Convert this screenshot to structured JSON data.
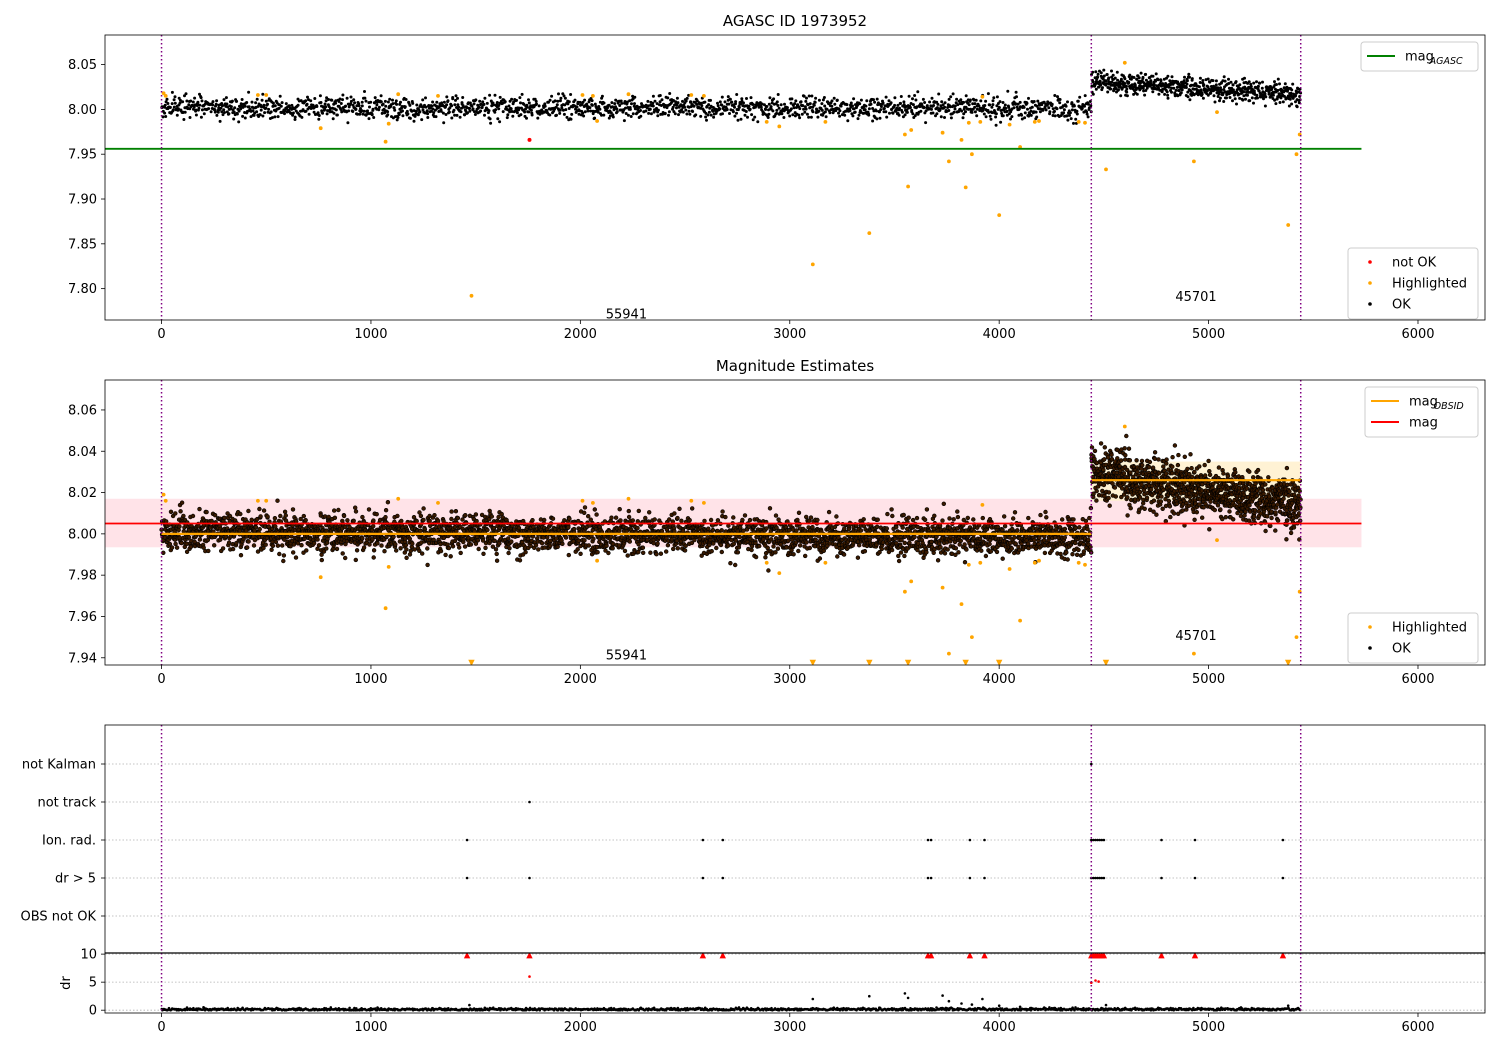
{
  "chart_data": [
    {
      "type": "scatter",
      "title": "AGASC ID 1973952",
      "xlim": [
        -270,
        6320
      ],
      "ylim": [
        7.765,
        8.083
      ],
      "xticks": [
        0,
        1000,
        2000,
        3000,
        4000,
        5000,
        6000
      ],
      "yticks": [
        7.8,
        7.85,
        7.9,
        7.95,
        8.0,
        8.05
      ],
      "ytick_labels": [
        "7.80",
        "7.85",
        "7.90",
        "7.95",
        "8.00",
        "8.05"
      ],
      "grid": false,
      "obs_boundaries": [
        0,
        4440,
        5440
      ],
      "obs_annotations": [
        {
          "text": "55941",
          "x": 2220,
          "y": 7.772
        },
        {
          "text": "45701",
          "x": 4940,
          "y": 7.792
        }
      ],
      "reference_lines": [
        {
          "name": "mag",
          "subscript": "AGASC",
          "color": "#008000",
          "y": 7.956,
          "x": [
            -270,
            5730
          ]
        }
      ],
      "ok_band": {
        "series": "OK",
        "segments": [
          {
            "x": [
              0,
              4440
            ],
            "center": 8.002,
            "spread": 0.006,
            "n": 1900,
            "drift": 0
          },
          {
            "x": [
              4440,
              5440
            ],
            "center": 8.031,
            "spread": 0.006,
            "n": 650,
            "drift": -0.014
          }
        ]
      },
      "series": [
        {
          "name": "not OK",
          "color": "#ff0000",
          "points": [
            [
              1757,
              7.966
            ]
          ]
        },
        {
          "name": "Highlighted",
          "color": "#ffa500",
          "points": [
            [
              10,
              8.018
            ],
            [
              20,
              8.015
            ],
            [
              460,
              8.016
            ],
            [
              500,
              8.016
            ],
            [
              760,
              7.979
            ],
            [
              1070,
              7.964
            ],
            [
              1085,
              7.984
            ],
            [
              1130,
              8.017
            ],
            [
              1320,
              8.015
            ],
            [
              1480,
              7.792
            ],
            [
              2010,
              8.016
            ],
            [
              2060,
              8.015
            ],
            [
              2080,
              7.987
            ],
            [
              2230,
              8.017
            ],
            [
              2530,
              8.016
            ],
            [
              2590,
              8.015
            ],
            [
              2890,
              7.986
            ],
            [
              2950,
              7.981
            ],
            [
              3110,
              7.827
            ],
            [
              3170,
              7.986
            ],
            [
              3380,
              7.862
            ],
            [
              3550,
              7.972
            ],
            [
              3565,
              7.914
            ],
            [
              3580,
              7.977
            ],
            [
              3730,
              7.974
            ],
            [
              3760,
              7.942
            ],
            [
              3820,
              7.966
            ],
            [
              3840,
              7.913
            ],
            [
              3855,
              7.985
            ],
            [
              3870,
              7.95
            ],
            [
              3910,
              7.986
            ],
            [
              3920,
              8.014
            ],
            [
              4000,
              7.882
            ],
            [
              4050,
              7.983
            ],
            [
              4100,
              7.958
            ],
            [
              4170,
              7.986
            ],
            [
              4190,
              7.987
            ],
            [
              4380,
              7.986
            ],
            [
              4410,
              7.985
            ],
            [
              4510,
              7.933
            ],
            [
              4600,
              8.052
            ],
            [
              4930,
              7.942
            ],
            [
              5040,
              7.997
            ],
            [
              5380,
              7.871
            ],
            [
              5420,
              7.95
            ],
            [
              5435,
              7.972
            ]
          ]
        },
        {
          "name": "OK",
          "color": "#000000",
          "points": []
        }
      ],
      "legends": [
        {
          "position": "upper right",
          "entries": [
            {
              "label": "mag",
              "sub": "AGASC",
              "kind": "line",
              "color": "#008000"
            }
          ]
        },
        {
          "position": "lower right",
          "entries": [
            {
              "label": "not OK",
              "kind": "marker",
              "color": "#ff0000"
            },
            {
              "label": "Highlighted",
              "kind": "marker",
              "color": "#ffa500"
            },
            {
              "label": "OK",
              "kind": "marker",
              "color": "#000000"
            }
          ]
        }
      ]
    },
    {
      "type": "scatter",
      "title": "Magnitude Estimates",
      "xlim": [
        -270,
        6320
      ],
      "ylim": [
        7.9365,
        8.0745
      ],
      "xticks": [
        0,
        1000,
        2000,
        3000,
        4000,
        5000,
        6000
      ],
      "yticks": [
        7.94,
        7.96,
        7.98,
        8.0,
        8.02,
        8.04,
        8.06
      ],
      "ytick_labels": [
        "7.94",
        "7.96",
        "7.98",
        "8.00",
        "8.02",
        "8.04",
        "8.06"
      ],
      "grid": false,
      "obs_boundaries": [
        0,
        4440,
        5440
      ],
      "obs_annotations": [
        {
          "text": "55941",
          "x": 2220,
          "y": 7.9415
        },
        {
          "text": "45701",
          "x": 4940,
          "y": 7.951
        }
      ],
      "reference_lines": [
        {
          "name": "mag",
          "color": "#ff0000",
          "y": 8.005,
          "x": [
            -270,
            5730
          ]
        }
      ],
      "bands": [
        {
          "color": "#ffc0cb",
          "opacity": 0.45,
          "x": [
            -270,
            5730
          ],
          "y": [
            7.9935,
            8.017
          ]
        },
        {
          "color": "#fff0cc",
          "opacity": 0.85,
          "x": [
            4440,
            5440
          ],
          "y": [
            8.016,
            8.035
          ]
        }
      ],
      "obsid_mags": [
        {
          "x": [
            0,
            4440
          ],
          "y": 8.0
        },
        {
          "x": [
            4440,
            5440
          ],
          "y": 8.026
        }
      ],
      "ok_band": {
        "series": "OK",
        "segments": [
          {
            "x": [
              0,
              4440
            ],
            "center": 8.001,
            "spread": 0.0045,
            "n": 3200,
            "drift": -0.003
          },
          {
            "x": [
              4440,
              5440
            ],
            "center": 8.03,
            "spread": 0.0065,
            "n": 1100,
            "drift": -0.016
          }
        ]
      },
      "series": [
        {
          "name": "Highlighted",
          "color": "#ffa500",
          "points": [
            [
              10,
              8.019
            ],
            [
              20,
              8.016
            ],
            [
              460,
              8.016
            ],
            [
              500,
              8.016
            ],
            [
              760,
              7.979
            ],
            [
              1070,
              7.964
            ],
            [
              1085,
              7.984
            ],
            [
              1130,
              8.017
            ],
            [
              1320,
              8.015
            ],
            [
              2010,
              8.016
            ],
            [
              2060,
              8.015
            ],
            [
              2080,
              7.987
            ],
            [
              2230,
              8.017
            ],
            [
              2530,
              8.016
            ],
            [
              2590,
              8.015
            ],
            [
              2890,
              7.986
            ],
            [
              2950,
              7.981
            ],
            [
              3170,
              7.986
            ],
            [
              3550,
              7.972
            ],
            [
              3580,
              7.977
            ],
            [
              3730,
              7.974
            ],
            [
              3760,
              7.942
            ],
            [
              3820,
              7.966
            ],
            [
              3855,
              7.985
            ],
            [
              3870,
              7.95
            ],
            [
              3910,
              7.986
            ],
            [
              3920,
              8.014
            ],
            [
              4050,
              7.983
            ],
            [
              4100,
              7.958
            ],
            [
              4170,
              7.986
            ],
            [
              4190,
              7.987
            ],
            [
              4380,
              7.986
            ],
            [
              4410,
              7.985
            ],
            [
              4600,
              8.052
            ],
            [
              4930,
              7.942
            ],
            [
              5040,
              7.997
            ],
            [
              5420,
              7.95
            ],
            [
              5435,
              7.972
            ]
          ]
        },
        {
          "name": "Highlighted (below axis)",
          "color": "#ffa500",
          "marker": "triangle-down",
          "points": [
            [
              1480,
              7.9375
            ],
            [
              3110,
              7.9375
            ],
            [
              3380,
              7.9375
            ],
            [
              3565,
              7.9375
            ],
            [
              3840,
              7.9375
            ],
            [
              4000,
              7.9375
            ],
            [
              4510,
              7.9375
            ],
            [
              5380,
              7.9375
            ]
          ]
        },
        {
          "name": "OK",
          "color": "#000000",
          "points": []
        }
      ],
      "legends": [
        {
          "position": "upper right",
          "entries": [
            {
              "label": "mag",
              "sub": "OBSID",
              "kind": "line",
              "color": "#ffa500"
            },
            {
              "label": "mag",
              "kind": "line",
              "color": "#ff0000"
            }
          ]
        },
        {
          "position": "lower right",
          "entries": [
            {
              "label": "Highlighted",
              "kind": "marker",
              "color": "#ffa500"
            },
            {
              "label": "OK",
              "kind": "marker",
              "color": "#000000"
            }
          ]
        }
      ]
    },
    {
      "type": "scatter",
      "xlim": [
        -270,
        6320
      ],
      "categories": [
        "OBS not OK",
        "dr > 5",
        "Ion. rad.",
        "not track",
        "not Kalman"
      ],
      "grid": true,
      "obs_boundaries": [
        0,
        4440,
        5440
      ],
      "flags": {
        "dr > 5": [
          1459,
          1757,
          2585,
          2680,
          3660,
          3675,
          3860,
          3930,
          4440,
          4450,
          4460,
          4470,
          4480,
          4490,
          4500,
          4775,
          4935,
          5355
        ],
        "Ion. rad.": [
          1459,
          2585,
          2680,
          3660,
          3675,
          3860,
          3930,
          4440,
          4450,
          4460,
          4470,
          4480,
          4490,
          4500,
          4775,
          4935,
          5355
        ],
        "not track": [
          1757
        ],
        "not Kalman": [
          4440
        ]
      }
    },
    {
      "type": "scatter",
      "ylabel": "dr",
      "xlim": [
        -270,
        6320
      ],
      "ylim": [
        -0.5,
        10.2
      ],
      "xticks": [
        0,
        1000,
        2000,
        3000,
        4000,
        5000,
        6000
      ],
      "yticks": [
        0,
        5,
        10
      ],
      "grid": true,
      "obs_boundaries": [
        0,
        4440,
        5440
      ],
      "baseline": {
        "series": "OK",
        "x": [
          0,
          5440
        ],
        "center": 0.15,
        "spread": 0.12,
        "n": 1400
      },
      "series": [
        {
          "name": "OK",
          "color": "#000000",
          "points": [
            [
              1470,
              0.9
            ],
            [
              3110,
              2.0
            ],
            [
              3380,
              2.5
            ],
            [
              3550,
              3.0
            ],
            [
              3565,
              2.2
            ],
            [
              3730,
              2.6
            ],
            [
              3760,
              1.6
            ],
            [
              3820,
              1.2
            ],
            [
              3870,
              1.0
            ],
            [
              3920,
              2.0
            ],
            [
              4000,
              0.8
            ],
            [
              4100,
              0.6
            ],
            [
              4510,
              0.9
            ],
            [
              5380,
              0.8
            ]
          ]
        },
        {
          "name": "dr > 10",
          "color": "#ff0000",
          "marker": "triangle-up",
          "points": [
            [
              1459,
              10
            ],
            [
              1757,
              10
            ],
            [
              2585,
              10
            ],
            [
              2680,
              10
            ],
            [
              3660,
              10
            ],
            [
              3675,
              10
            ],
            [
              3860,
              10
            ],
            [
              3930,
              10
            ],
            [
              4440,
              10
            ],
            [
              4450,
              10
            ],
            [
              4460,
              10
            ],
            [
              4470,
              10
            ],
            [
              4480,
              10
            ],
            [
              4490,
              10
            ],
            [
              4500,
              10
            ],
            [
              4775,
              10
            ],
            [
              4935,
              10
            ],
            [
              5355,
              10
            ]
          ]
        },
        {
          "name": "red",
          "color": "#ff0000",
          "points": [
            [
              1757,
              6.0
            ],
            [
              4460,
              5.3
            ],
            [
              4475,
              5.1
            ],
            [
              4440,
              4.9
            ]
          ]
        }
      ]
    }
  ]
}
